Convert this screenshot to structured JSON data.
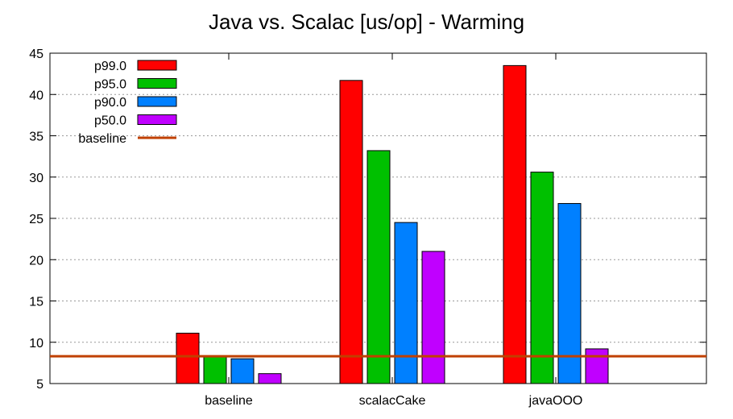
{
  "chart_data": {
    "type": "bar",
    "title": "Java vs. Scalac [us/op] - Warming",
    "xlabel": "",
    "ylabel": "",
    "ylim": [
      5,
      45
    ],
    "yticks": [
      5,
      10,
      15,
      20,
      25,
      30,
      35,
      40,
      45
    ],
    "grid": "horizontal dotted",
    "legend_position": "top-left",
    "categories": [
      "baseline",
      "scalacCake",
      "javaOOO"
    ],
    "series": [
      {
        "name": "p99.0",
        "color": "#ff0000",
        "values": [
          11.1,
          41.7,
          43.5
        ]
      },
      {
        "name": "p95.0",
        "color": "#00c000",
        "values": [
          8.3,
          33.2,
          30.6
        ]
      },
      {
        "name": "p90.0",
        "color": "#0080ff",
        "values": [
          8.0,
          24.5,
          26.8
        ]
      },
      {
        "name": "p50.0",
        "color": "#c000ff",
        "values": [
          6.2,
          21.0,
          9.2
        ]
      }
    ],
    "reference_line": {
      "name": "baseline",
      "value": 8.3,
      "color": "#c04000"
    }
  }
}
